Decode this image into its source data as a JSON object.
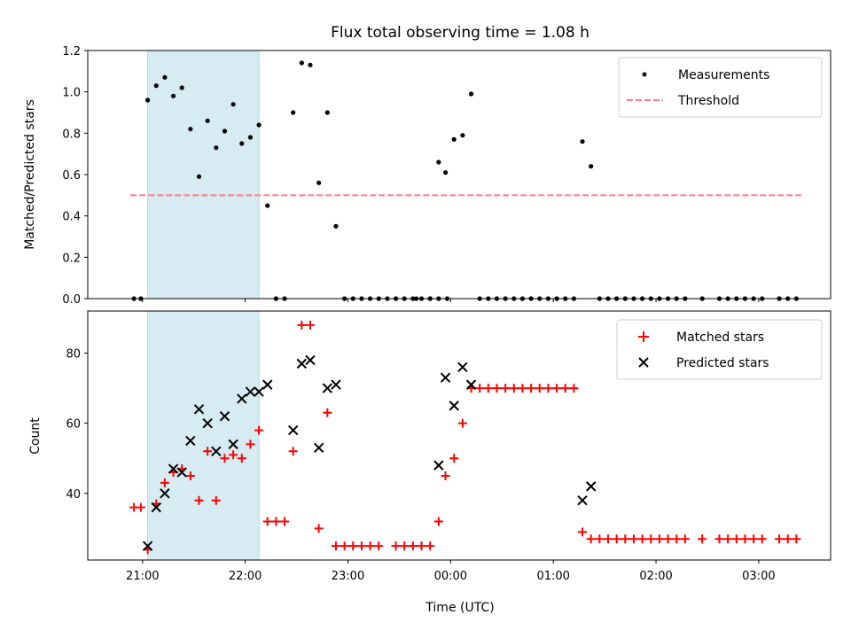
{
  "chart_data": [
    {
      "type": "scatter",
      "title": "Flux total observing time = 1.08 h",
      "ylabel": "Matched/Predicted stars",
      "ylim": [
        0,
        1.2
      ],
      "yticks": [
        0.0,
        0.2,
        0.4,
        0.6,
        0.8,
        1.0,
        1.2
      ],
      "ytick_labels": [
        "0.0",
        "0.2",
        "0.4",
        "0.6",
        "0.8",
        "1.0",
        "1.2"
      ],
      "grid": false,
      "legend_position": "top-right",
      "legend": [
        "Measurements",
        "Threshold"
      ],
      "highlight_span": [
        "21:03",
        "22:08"
      ],
      "threshold": {
        "name": "Threshold",
        "value": 0.5,
        "x_from": "20:53",
        "x_to": "03:25",
        "color": "#ff7f7f",
        "style": "dashed"
      },
      "series": [
        {
          "name": "Measurements",
          "color": "#000000",
          "marker": "dot",
          "points": [
            [
              "20:55",
              0.0
            ],
            [
              "20:59",
              0.0
            ],
            [
              "21:03",
              0.96
            ],
            [
              "21:08",
              1.03
            ],
            [
              "21:13",
              1.07
            ],
            [
              "21:18",
              0.98
            ],
            [
              "21:23",
              1.02
            ],
            [
              "21:28",
              0.82
            ],
            [
              "21:33",
              0.59
            ],
            [
              "21:38",
              0.86
            ],
            [
              "21:43",
              0.73
            ],
            [
              "21:48",
              0.81
            ],
            [
              "21:53",
              0.94
            ],
            [
              "21:58",
              0.75
            ],
            [
              "22:03",
              0.78
            ],
            [
              "22:08",
              0.84
            ],
            [
              "22:13",
              0.45
            ],
            [
              "22:18",
              0.0
            ],
            [
              "22:23",
              0.0
            ],
            [
              "22:28",
              0.9
            ],
            [
              "22:33",
              1.14
            ],
            [
              "22:38",
              1.13
            ],
            [
              "22:43",
              0.56
            ],
            [
              "22:48",
              0.9
            ],
            [
              "22:53",
              0.35
            ],
            [
              "22:58",
              0.0
            ],
            [
              "23:03",
              0.0
            ],
            [
              "23:08",
              0.0
            ],
            [
              "23:13",
              0.0
            ],
            [
              "23:18",
              0.0
            ],
            [
              "23:23",
              0.0
            ],
            [
              "23:28",
              0.0
            ],
            [
              "23:33",
              0.0
            ],
            [
              "23:38",
              0.0
            ],
            [
              "23:43",
              0.0
            ],
            [
              "23:48",
              0.0
            ],
            [
              "23:53",
              0.0
            ],
            [
              "23:58",
              0.0
            ],
            [
              "23:40",
              0.0
            ],
            [
              "23:48",
              0.0
            ],
            [
              "23:53",
              0.66
            ],
            [
              "23:57",
              0.61
            ],
            [
              "00:02",
              0.77
            ],
            [
              "00:07",
              0.79
            ],
            [
              "00:12",
              0.99
            ],
            [
              "00:17",
              0.0
            ],
            [
              "00:22",
              0.0
            ],
            [
              "00:27",
              0.0
            ],
            [
              "00:32",
              0.0
            ],
            [
              "00:37",
              0.0
            ],
            [
              "00:42",
              0.0
            ],
            [
              "00:47",
              0.0
            ],
            [
              "00:52",
              0.0
            ],
            [
              "00:57",
              0.0
            ],
            [
              "01:02",
              0.0
            ],
            [
              "01:07",
              0.0
            ],
            [
              "01:12",
              0.0
            ],
            [
              "01:17",
              0.76
            ],
            [
              "01:22",
              0.64
            ],
            [
              "01:27",
              0.0
            ],
            [
              "01:32",
              0.0
            ],
            [
              "01:37",
              0.0
            ],
            [
              "01:42",
              0.0
            ],
            [
              "01:47",
              0.0
            ],
            [
              "01:52",
              0.0
            ],
            [
              "01:57",
              0.0
            ],
            [
              "02:02",
              0.0
            ],
            [
              "02:07",
              0.0
            ],
            [
              "02:12",
              0.0
            ],
            [
              "02:17",
              0.0
            ],
            [
              "02:27",
              0.0
            ],
            [
              "02:37",
              0.0
            ],
            [
              "02:42",
              0.0
            ],
            [
              "02:47",
              0.0
            ],
            [
              "02:52",
              0.0
            ],
            [
              "02:57",
              0.0
            ],
            [
              "03:02",
              0.0
            ],
            [
              "03:12",
              0.0
            ],
            [
              "03:17",
              0.0
            ],
            [
              "03:22",
              0.0
            ]
          ]
        }
      ]
    },
    {
      "type": "scatter",
      "xlabel": "Time (UTC)",
      "ylabel": "Count",
      "ylim": [
        21,
        92
      ],
      "yticks": [
        40,
        60,
        80
      ],
      "ytick_labels": [
        "40",
        "60",
        "80"
      ],
      "xticks": [
        "21:00",
        "22:00",
        "23:00",
        "00:00",
        "01:00",
        "02:00",
        "03:00"
      ],
      "xtick_labels": [
        "21:00",
        "22:00",
        "23:00",
        "00:00",
        "01:00",
        "02:00",
        "03:00"
      ],
      "grid": false,
      "legend_position": "top-right",
      "legend": [
        "Matched stars",
        "Predicted stars"
      ],
      "highlight_span": [
        "21:03",
        "22:08"
      ],
      "series": [
        {
          "name": "Matched stars",
          "color": "#ff0000",
          "marker": "plus",
          "points": [
            [
              "20:55",
              36
            ],
            [
              "20:59",
              36
            ],
            [
              "21:03",
              24
            ],
            [
              "21:08",
              37
            ],
            [
              "21:13",
              43
            ],
            [
              "21:18",
              46
            ],
            [
              "21:23",
              47
            ],
            [
              "21:28",
              45
            ],
            [
              "21:33",
              38
            ],
            [
              "21:38",
              52
            ],
            [
              "21:43",
              38
            ],
            [
              "21:48",
              50
            ],
            [
              "21:53",
              51
            ],
            [
              "21:58",
              50
            ],
            [
              "22:03",
              54
            ],
            [
              "22:08",
              58
            ],
            [
              "22:13",
              32
            ],
            [
              "22:18",
              32
            ],
            [
              "22:23",
              32
            ],
            [
              "22:28",
              52
            ],
            [
              "22:33",
              88
            ],
            [
              "22:38",
              88
            ],
            [
              "22:43",
              30
            ],
            [
              "22:48",
              63
            ],
            [
              "22:53",
              25
            ],
            [
              "22:58",
              25
            ],
            [
              "23:03",
              25
            ],
            [
              "23:08",
              25
            ],
            [
              "23:13",
              25
            ],
            [
              "23:18",
              25
            ],
            [
              "23:28",
              25
            ],
            [
              "23:33",
              25
            ],
            [
              "23:38",
              25
            ],
            [
              "23:43",
              25
            ],
            [
              "23:48",
              25
            ],
            [
              "23:53",
              32
            ],
            [
              "23:57",
              45
            ],
            [
              "00:02",
              50
            ],
            [
              "00:07",
              60
            ],
            [
              "00:12",
              70
            ],
            [
              "00:17",
              70
            ],
            [
              "00:22",
              70
            ],
            [
              "00:27",
              70
            ],
            [
              "00:32",
              70
            ],
            [
              "00:37",
              70
            ],
            [
              "00:42",
              70
            ],
            [
              "00:47",
              70
            ],
            [
              "00:52",
              70
            ],
            [
              "00:57",
              70
            ],
            [
              "01:02",
              70
            ],
            [
              "01:07",
              70
            ],
            [
              "01:12",
              70
            ],
            [
              "01:17",
              29
            ],
            [
              "01:22",
              27
            ],
            [
              "01:27",
              27
            ],
            [
              "01:32",
              27
            ],
            [
              "01:37",
              27
            ],
            [
              "01:42",
              27
            ],
            [
              "01:47",
              27
            ],
            [
              "01:52",
              27
            ],
            [
              "01:57",
              27
            ],
            [
              "02:02",
              27
            ],
            [
              "02:07",
              27
            ],
            [
              "02:12",
              27
            ],
            [
              "02:17",
              27
            ],
            [
              "02:27",
              27
            ],
            [
              "02:37",
              27
            ],
            [
              "02:42",
              27
            ],
            [
              "02:47",
              27
            ],
            [
              "02:52",
              27
            ],
            [
              "02:57",
              27
            ],
            [
              "03:02",
              27
            ],
            [
              "03:12",
              27
            ],
            [
              "03:17",
              27
            ],
            [
              "03:22",
              27
            ]
          ]
        },
        {
          "name": "Predicted stars",
          "color": "#000000",
          "marker": "x",
          "points": [
            [
              "21:03",
              25
            ],
            [
              "21:08",
              36
            ],
            [
              "21:13",
              40
            ],
            [
              "21:18",
              47
            ],
            [
              "21:23",
              46
            ],
            [
              "21:28",
              55
            ],
            [
              "21:33",
              64
            ],
            [
              "21:38",
              60
            ],
            [
              "21:43",
              52
            ],
            [
              "21:48",
              62
            ],
            [
              "21:53",
              54
            ],
            [
              "21:58",
              67
            ],
            [
              "22:03",
              69
            ],
            [
              "22:08",
              69
            ],
            [
              "22:13",
              71
            ],
            [
              "22:28",
              58
            ],
            [
              "22:33",
              77
            ],
            [
              "22:38",
              78
            ],
            [
              "22:43",
              53
            ],
            [
              "22:48",
              70
            ],
            [
              "22:53",
              71
            ],
            [
              "23:53",
              48
            ],
            [
              "23:57",
              73
            ],
            [
              "00:02",
              65
            ],
            [
              "00:07",
              76
            ],
            [
              "00:12",
              71
            ],
            [
              "01:17",
              38
            ],
            [
              "01:22",
              42
            ]
          ]
        }
      ]
    }
  ]
}
